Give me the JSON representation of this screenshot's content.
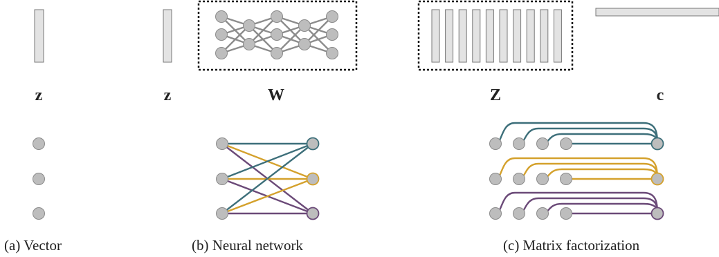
{
  "colors": {
    "node_fill": "#bdbdbd",
    "node_stroke": "#8a8a8a",
    "bar_fill": "#e3e3e3",
    "bar_stroke": "#777777",
    "teal": "#3d6f7a",
    "gold": "#d4a12c",
    "purple": "#6b4a78",
    "text": "#222222"
  },
  "panel_a": {
    "symbol": "z",
    "caption": "(a) Vector"
  },
  "panel_b": {
    "symbol_z": "z",
    "symbol_w": "W",
    "caption": "(b) Neural network"
  },
  "panel_c": {
    "symbol_Z": "Z",
    "symbol_c": "c",
    "caption": "(c) Matrix factorization"
  }
}
